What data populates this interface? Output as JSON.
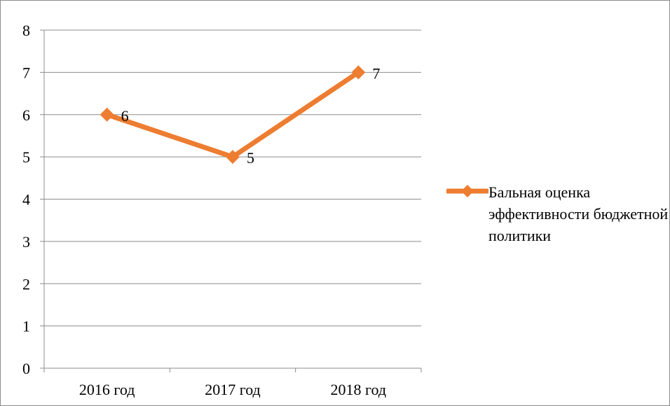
{
  "chart_data": {
    "type": "line",
    "categories": [
      "2016 год",
      "2017 год",
      "2018 год"
    ],
    "series": [
      {
        "name": "Бальная оценка эффективности бюджетной политики",
        "values": [
          6,
          5,
          7
        ],
        "color": "#ED7D31",
        "marker": "diamond",
        "data_labels": [
          "6",
          "5",
          "7"
        ]
      }
    ],
    "y_ticks": [
      "0",
      "1",
      "2",
      "3",
      "4",
      "5",
      "6",
      "7",
      "8"
    ],
    "ylim": [
      0,
      8
    ],
    "grid": true,
    "legend_position": "right"
  }
}
